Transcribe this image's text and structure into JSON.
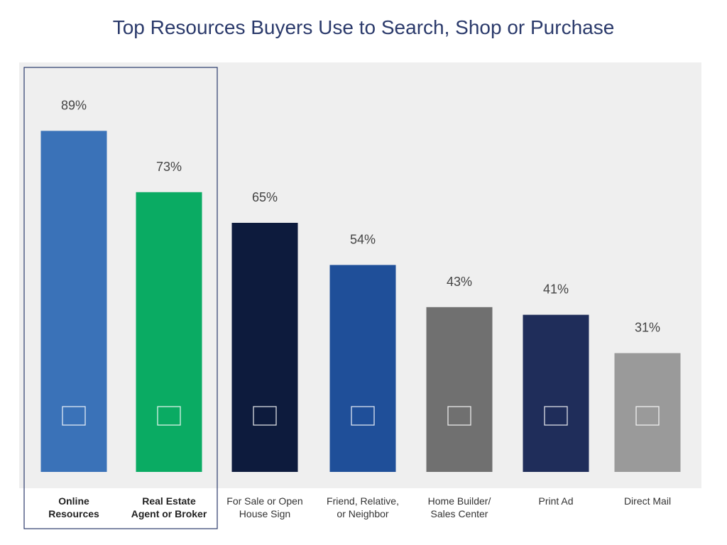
{
  "chart_data": {
    "type": "bar",
    "title": "Top Resources Buyers Use to Search, Shop or Purchase",
    "categories": [
      "Online\nResources",
      "Real Estate\nAgent or Broker",
      "For Sale or Open\nHouse Sign",
      "Friend, Relative,\nor Neighbor",
      "Home Builder/\nSales Center",
      "Print Ad",
      "Direct Mail"
    ],
    "values": [
      89,
      73,
      65,
      54,
      43,
      41,
      31
    ],
    "value_labels": [
      "89%",
      "73%",
      "65%",
      "54%",
      "43%",
      "41%",
      "31%"
    ],
    "colors": [
      "#3a72b8",
      "#0aab63",
      "#0d1b3d",
      "#1f4f99",
      "#707070",
      "#1f2d5a",
      "#9a9a9a"
    ],
    "highlighted": [
      0,
      1
    ]
  }
}
